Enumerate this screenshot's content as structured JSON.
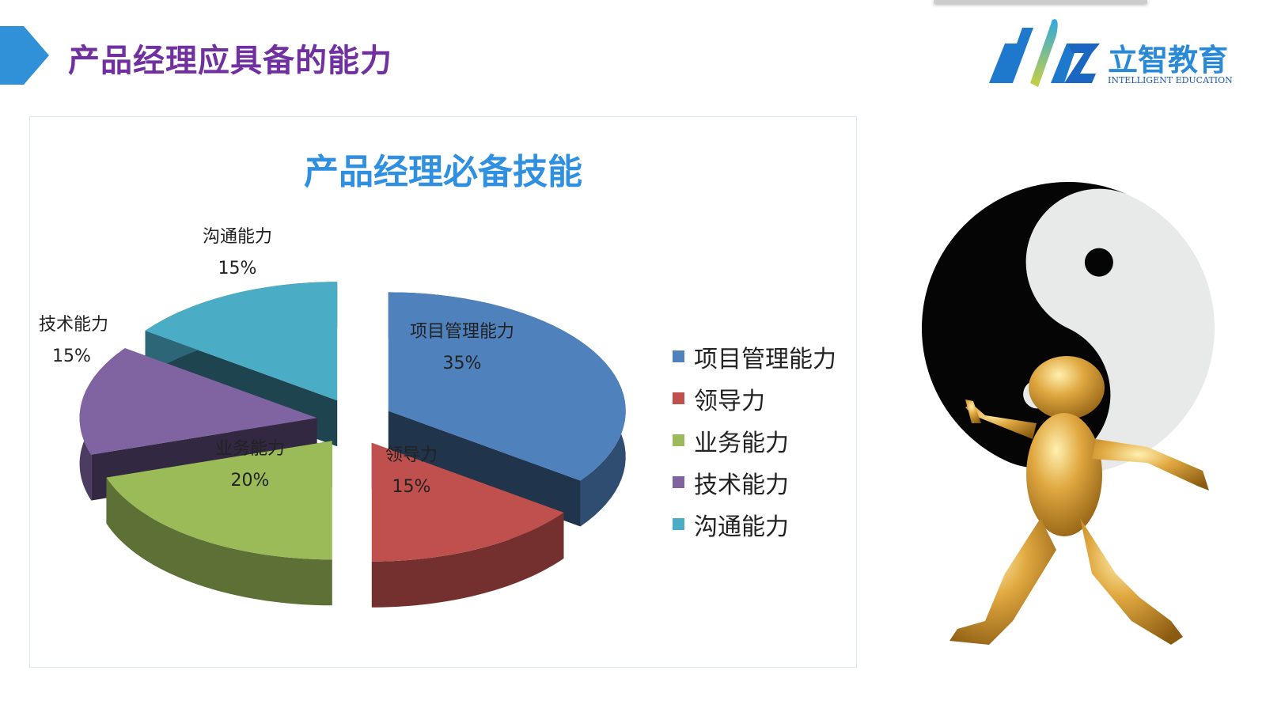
{
  "header": {
    "title": "产品经理应具备的能力",
    "accent": "#2f8fe0",
    "title_color": "#7030a0"
  },
  "logo": {
    "mark": "dlz",
    "name_cn": "立智教育",
    "name_en": "INTELLIGENT EDUCATION"
  },
  "chart_data": {
    "type": "pie",
    "style": "3d-exploded",
    "title": "产品经理必备技能",
    "categories": [
      "项目管理能力",
      "领导力",
      "业务能力",
      "技术能力",
      "沟通能力"
    ],
    "values": [
      35,
      15,
      20,
      15,
      15
    ],
    "labels": [
      "35%",
      "15%",
      "20%",
      "15%",
      "15%"
    ],
    "colors": [
      "#4f81bd",
      "#c0504d",
      "#9bbb59",
      "#8064a2",
      "#4bacc6"
    ],
    "legend": "right"
  },
  "illustration": {
    "icon": "yin-yang-golden-figure-icon"
  }
}
